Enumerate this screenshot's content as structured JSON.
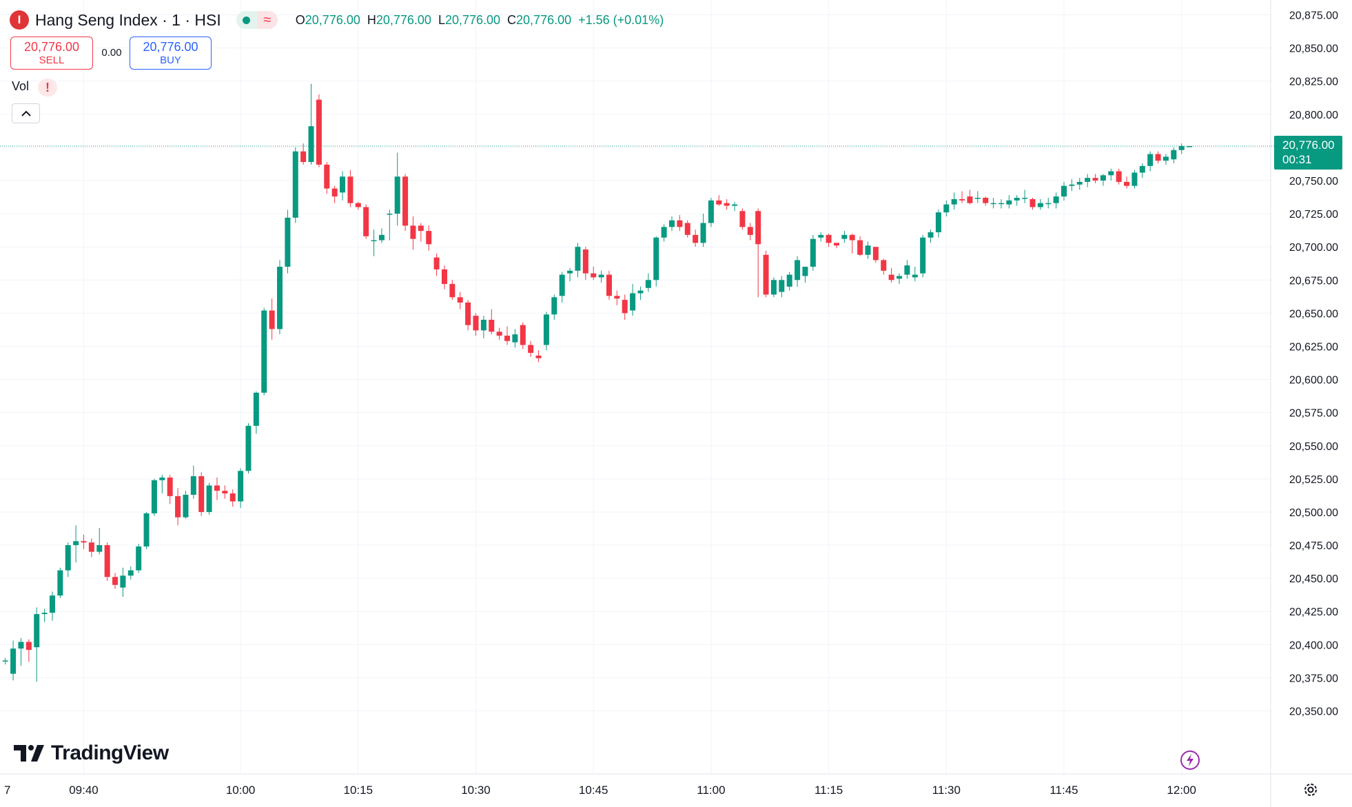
{
  "header": {
    "symbol_title": "Hang Seng Index · 1 · HSI",
    "logo_glyph": "I",
    "ohlc": {
      "open_label": "O",
      "open": "20,776.00",
      "high_label": "H",
      "high": "20,776.00",
      "low_label": "L",
      "low": "20,776.00",
      "close_label": "C",
      "close": "20,776.00",
      "change": "+1.56 (+0.01%)"
    },
    "status_wave": "≈"
  },
  "trade": {
    "sell_price": "20,776.00",
    "sell_label": "SELL",
    "spread": "0.00",
    "buy_price": "20,776.00",
    "buy_label": "BUY"
  },
  "volume": {
    "label": "Vol",
    "warning": "!"
  },
  "branding": {
    "name": "TradingView"
  },
  "last_price": {
    "price": "20,776.00",
    "countdown": "00:31"
  },
  "colors": {
    "up": "#089981",
    "down": "#f23645",
    "grid": "#f0f3fa",
    "text": "#131722",
    "price_line": "#089981"
  },
  "chart_data": {
    "type": "candlestick",
    "ylim": [
      20325,
      20881
    ],
    "y_ticks": [
      20350,
      20375,
      20400,
      20425,
      20450,
      20475,
      20500,
      20525,
      20550,
      20575,
      20600,
      20625,
      20650,
      20675,
      20700,
      20725,
      20750,
      20775,
      20800,
      20825,
      20850,
      20875
    ],
    "y_tick_labels": [
      "20,350.00",
      "20,375.00",
      "20,400.00",
      "20,425.00",
      "20,450.00",
      "20,475.00",
      "20,500.00",
      "20,525.00",
      "20,550.00",
      "20,575.00",
      "20,600.00",
      "20,625.00",
      "20,650.00",
      "20,675.00",
      "20,700.00",
      "20,725.00",
      "20,750.00",
      "20,775.00",
      "20,800.00",
      "20,825.00",
      "20,850.00",
      "20,875.00"
    ],
    "x_ticks": [
      "09:40",
      "10:00",
      "10:15",
      "10:30",
      "10:45",
      "11:00",
      "11:15",
      "11:30",
      "11:45",
      "12:00"
    ],
    "x_tick_index": [
      10,
      30,
      45,
      60,
      75,
      90,
      105,
      120,
      135,
      150
    ],
    "x_edge_label": "7",
    "last_price_value": 20776,
    "candles": [
      [
        20388,
        20390,
        20385,
        20388
      ],
      [
        20378,
        20403,
        20373,
        20397
      ],
      [
        20397,
        20405,
        20384,
        20402
      ],
      [
        20402,
        20404,
        20387,
        20396
      ],
      [
        20398,
        20428,
        20372,
        20423
      ],
      [
        20423,
        20427,
        20417,
        20424
      ],
      [
        20424,
        20440,
        20418,
        20437
      ],
      [
        20437,
        20458,
        20435,
        20456
      ],
      [
        20456,
        20477,
        20451,
        20475
      ],
      [
        20475,
        20490,
        20462,
        20478
      ],
      [
        20478,
        20483,
        20472,
        20477
      ],
      [
        20477,
        20480,
        20466,
        20470
      ],
      [
        20470,
        20488,
        20468,
        20475
      ],
      [
        20475,
        20477,
        20448,
        20451
      ],
      [
        20451,
        20454,
        20442,
        20445
      ],
      [
        20443,
        20458,
        20436,
        20452
      ],
      [
        20452,
        20459,
        20449,
        20456
      ],
      [
        20456,
        20476,
        20454,
        20474
      ],
      [
        20474,
        20500,
        20472,
        20499
      ],
      [
        20499,
        20525,
        20497,
        20524
      ],
      [
        20524,
        20528,
        20514,
        20526
      ],
      [
        20526,
        20528,
        20506,
        20512
      ],
      [
        20512,
        20518,
        20490,
        20496
      ],
      [
        20496,
        20516,
        20495,
        20513
      ],
      [
        20513,
        20535,
        20510,
        20527
      ],
      [
        20527,
        20530,
        20497,
        20500
      ],
      [
        20500,
        20522,
        20498,
        20520
      ],
      [
        20520,
        20526,
        20509,
        20516
      ],
      [
        20516,
        20520,
        20510,
        20514
      ],
      [
        20514,
        20517,
        20504,
        20508
      ],
      [
        20508,
        20533,
        20503,
        20531
      ],
      [
        20531,
        20567,
        20529,
        20565
      ],
      [
        20565,
        20591,
        20559,
        20590
      ],
      [
        20590,
        20654,
        20588,
        20652
      ],
      [
        20652,
        20661,
        20630,
        20638
      ],
      [
        20638,
        20690,
        20634,
        20685
      ],
      [
        20685,
        20728,
        20680,
        20722
      ],
      [
        20722,
        20775,
        20718,
        20772
      ],
      [
        20772,
        20778,
        20762,
        20764
      ],
      [
        20764,
        20823,
        20762,
        20791
      ],
      [
        20811,
        20815,
        20760,
        20762
      ],
      [
        20762,
        20764,
        20740,
        20744
      ],
      [
        20744,
        20746,
        20733,
        20738
      ],
      [
        20741,
        20757,
        20735,
        20753
      ],
      [
        20753,
        20758,
        20730,
        20733
      ],
      [
        20733,
        20734,
        20728,
        20730
      ],
      [
        20730,
        20732,
        20706,
        20708
      ],
      [
        20705,
        20713,
        20693,
        20705
      ],
      [
        20705,
        20714,
        20703,
        20709
      ],
      [
        20725,
        20728,
        20705,
        20725
      ],
      [
        20725,
        20771,
        20716,
        20753
      ],
      [
        20753,
        20755,
        20712,
        20716
      ],
      [
        20716,
        20723,
        20698,
        20706
      ],
      [
        20716,
        20718,
        20704,
        20712
      ],
      [
        20712,
        20716,
        20697,
        20702
      ],
      [
        20692,
        20695,
        20678,
        20683
      ],
      [
        20683,
        20686,
        20668,
        20672
      ],
      [
        20672,
        20675,
        20660,
        20662
      ],
      [
        20662,
        20666,
        20653,
        20658
      ],
      [
        20658,
        20660,
        20637,
        20641
      ],
      [
        20648,
        20650,
        20633,
        20637
      ],
      [
        20637,
        20648,
        20631,
        20645
      ],
      [
        20645,
        20653,
        20634,
        20636
      ],
      [
        20636,
        20639,
        20630,
        20633
      ],
      [
        20633,
        20640,
        20626,
        20629
      ],
      [
        20628,
        20638,
        20624,
        20634
      ],
      [
        20641,
        20643,
        20623,
        20626
      ],
      [
        20626,
        20629,
        20617,
        20620
      ],
      [
        20618,
        20622,
        20613,
        20616
      ],
      [
        20626,
        20651,
        20622,
        20649
      ],
      [
        20649,
        20664,
        20645,
        20662
      ],
      [
        20663,
        20681,
        20658,
        20679
      ],
      [
        20680,
        20684,
        20674,
        20682
      ],
      [
        20682,
        20703,
        20677,
        20700
      ],
      [
        20698,
        20700,
        20675,
        20680
      ],
      [
        20680,
        20685,
        20675,
        20677
      ],
      [
        20677,
        20682,
        20673,
        20679
      ],
      [
        20679,
        20682,
        20660,
        20663
      ],
      [
        20663,
        20667,
        20656,
        20661
      ],
      [
        20660,
        20664,
        20645,
        20650
      ],
      [
        20652,
        20672,
        20648,
        20665
      ],
      [
        20665,
        20670,
        20660,
        20667
      ],
      [
        20669,
        20680,
        20666,
        20675
      ],
      [
        20675,
        20708,
        20670,
        20707
      ],
      [
        20707,
        20717,
        20704,
        20715
      ],
      [
        20715,
        20723,
        20712,
        20720
      ],
      [
        20720,
        20724,
        20712,
        20715
      ],
      [
        20718,
        20720,
        20707,
        20709
      ],
      [
        20709,
        20713,
        20700,
        20703
      ],
      [
        20703,
        20725,
        20700,
        20718
      ],
      [
        20718,
        20737,
        20715,
        20735
      ],
      [
        20735,
        20739,
        20731,
        20732
      ],
      [
        20733,
        20736,
        20728,
        20731
      ],
      [
        20731,
        20734,
        20727,
        20732
      ],
      [
        20727,
        20729,
        20713,
        20715
      ],
      [
        20715,
        20718,
        20705,
        20709
      ],
      [
        20727,
        20729,
        20662,
        20702
      ],
      [
        20694,
        20697,
        20662,
        20664
      ],
      [
        20664,
        20677,
        20662,
        20675
      ],
      [
        20666,
        20678,
        20662,
        20675
      ],
      [
        20670,
        20681,
        20667,
        20679
      ],
      [
        20675,
        20693,
        20670,
        20690
      ],
      [
        20678,
        20682,
        20673,
        20685
      ],
      [
        20685,
        20709,
        20682,
        20706
      ],
      [
        20707,
        20711,
        20704,
        20709
      ],
      [
        20709,
        20710,
        20700,
        20703
      ],
      [
        20703,
        20703,
        20699,
        20701
      ],
      [
        20706,
        20712,
        20703,
        20709
      ],
      [
        20709,
        20710,
        20695,
        20705
      ],
      [
        20705,
        20708,
        20693,
        20694
      ],
      [
        20694,
        20704,
        20691,
        20701
      ],
      [
        20700,
        20700,
        20688,
        20690
      ],
      [
        20690,
        20691,
        20679,
        20682
      ],
      [
        20679,
        20684,
        20673,
        20675
      ],
      [
        20676,
        20680,
        20672,
        20678
      ],
      [
        20679,
        20690,
        20676,
        20686
      ],
      [
        20677,
        20685,
        20674,
        20679
      ],
      [
        20680,
        20709,
        20677,
        20707
      ],
      [
        20707,
        20713,
        20703,
        20711
      ],
      [
        20711,
        20728,
        20707,
        20726
      ],
      [
        20726,
        20735,
        20723,
        20732
      ],
      [
        20732,
        20741,
        20728,
        20736
      ],
      [
        20736,
        20742,
        20733,
        20735
      ],
      [
        20738,
        20743,
        20732,
        20733
      ],
      [
        20737,
        20742,
        20733,
        20737
      ],
      [
        20737,
        20738,
        20731,
        20733
      ],
      [
        20733,
        20737,
        20729,
        20733
      ],
      [
        20733,
        20736,
        20729,
        20733
      ],
      [
        20732,
        20739,
        20729,
        20735
      ],
      [
        20735,
        20739,
        20731,
        20737
      ],
      [
        20737,
        20743,
        20733,
        20737
      ],
      [
        20736,
        20737,
        20728,
        20730
      ],
      [
        20730,
        20736,
        20728,
        20733
      ],
      [
        20733,
        20737,
        20729,
        20733
      ],
      [
        20733,
        20741,
        20729,
        20738
      ],
      [
        20738,
        20749,
        20735,
        20746
      ],
      [
        20746,
        20751,
        20742,
        20747
      ],
      [
        20747,
        20752,
        20743,
        20749
      ],
      [
        20749,
        20755,
        20745,
        20752
      ],
      [
        20752,
        20755,
        20748,
        20750
      ],
      [
        20750,
        20755,
        20746,
        20754
      ],
      [
        20754,
        20759,
        20750,
        20757
      ],
      [
        20757,
        20759,
        20747,
        20749
      ],
      [
        20749,
        20753,
        20744,
        20746
      ],
      [
        20746,
        20758,
        20744,
        20756
      ],
      [
        20756,
        20763,
        20752,
        20761
      ],
      [
        20761,
        20772,
        20757,
        20770
      ],
      [
        20770,
        20772,
        20763,
        20765
      ],
      [
        20765,
        20770,
        20762,
        20768
      ],
      [
        20766,
        20775,
        20763,
        20773
      ],
      [
        20773,
        20778,
        20770,
        20776
      ],
      [
        20776,
        20776,
        20776,
        20776
      ]
    ]
  }
}
